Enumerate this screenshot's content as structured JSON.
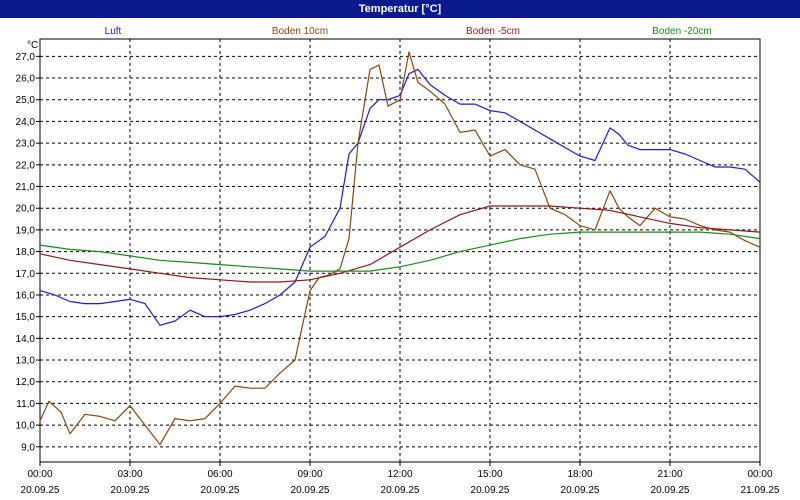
{
  "window": {
    "title": "Temperatur [°C]"
  },
  "chart_data": {
    "type": "line",
    "title": "Temperatur [°C]",
    "ylabel": "°C",
    "xlabel": "",
    "xlim": [
      0,
      24
    ],
    "ylim": [
      8.3,
      27.8
    ],
    "grid": true,
    "legend_position": "top",
    "yticks": [
      "9,0",
      "10,0",
      "11,0",
      "12,0",
      "13,0",
      "14,0",
      "15,0",
      "16,0",
      "17,0",
      "18,0",
      "19,0",
      "20,0",
      "21,0",
      "22,0",
      "23,0",
      "24,0",
      "25,0",
      "26,0",
      "27,0"
    ],
    "ytick_values": [
      9,
      10,
      11,
      12,
      13,
      14,
      15,
      16,
      17,
      18,
      19,
      20,
      21,
      22,
      23,
      24,
      25,
      26,
      27
    ],
    "xticks": [
      {
        "time": "00:00",
        "date": "20.09.25"
      },
      {
        "time": "03:00",
        "date": "20.09.25"
      },
      {
        "time": "06:00",
        "date": "20.09.25"
      },
      {
        "time": "09:00",
        "date": "20.09.25"
      },
      {
        "time": "12:00",
        "date": "20.09.25"
      },
      {
        "time": "15:00",
        "date": "20.09.25"
      },
      {
        "time": "18:00",
        "date": "20.09.25"
      },
      {
        "time": "21:00",
        "date": "20.09.25"
      },
      {
        "time": "00:00",
        "date": "21.09.25"
      }
    ],
    "xtick_hours": [
      0,
      3,
      6,
      9,
      12,
      15,
      18,
      21,
      24
    ],
    "series": [
      {
        "name": "Luft",
        "color": "#1c1cd2",
        "x": [
          0,
          0.5,
          1,
          1.5,
          2,
          2.5,
          3,
          3.5,
          4,
          4.5,
          5,
          5.5,
          6,
          6.5,
          7,
          7.5,
          8,
          8.5,
          9,
          9.5,
          10,
          10.3,
          10.6,
          11,
          11.3,
          11.6,
          12,
          12.3,
          12.6,
          13,
          13.5,
          14,
          14.5,
          15,
          15.5,
          16,
          16.5,
          17,
          17.5,
          18,
          18.5,
          19,
          19.3,
          19.6,
          20,
          20.5,
          21,
          21.5,
          22,
          22.5,
          23,
          23.5,
          24
        ],
        "values": [
          16.2,
          16.0,
          15.7,
          15.6,
          15.6,
          15.7,
          15.8,
          15.6,
          14.6,
          14.8,
          15.3,
          15.0,
          15.0,
          15.1,
          15.3,
          15.6,
          16.0,
          16.6,
          18.2,
          18.7,
          20.0,
          22.5,
          23.0,
          24.6,
          25.0,
          25.0,
          25.2,
          26.2,
          26.4,
          25.7,
          25.2,
          24.8,
          24.8,
          24.5,
          24.4,
          24.0,
          23.6,
          23.2,
          22.8,
          22.4,
          22.2,
          23.7,
          23.4,
          22.9,
          22.7,
          22.7,
          22.7,
          22.5,
          22.2,
          21.9,
          21.9,
          21.8,
          21.2
        ]
      },
      {
        "name": "Boden 10cm",
        "color": "#8b4513",
        "x": [
          0,
          0.3,
          0.7,
          1,
          1.5,
          2,
          2.5,
          3,
          3.5,
          4,
          4.5,
          5,
          5.5,
          6,
          6.5,
          7,
          7.5,
          8,
          8.5,
          9,
          9.3,
          9.6,
          10,
          10.3,
          10.6,
          11,
          11.3,
          11.6,
          12,
          12.3,
          12.6,
          13,
          13.5,
          14,
          14.5,
          15,
          15.5,
          16,
          16.5,
          17,
          17.5,
          18,
          18.5,
          19,
          19.3,
          19.6,
          20,
          20.5,
          21,
          21.5,
          22,
          22.5,
          23,
          23.5,
          24
        ],
        "values": [
          10.2,
          11.1,
          10.6,
          9.6,
          10.5,
          10.4,
          10.2,
          10.9,
          10.0,
          9.1,
          10.3,
          10.2,
          10.3,
          11.0,
          11.8,
          11.7,
          11.7,
          12.4,
          13.0,
          16.2,
          16.8,
          16.9,
          17.2,
          18.6,
          23.0,
          26.4,
          26.6,
          24.7,
          25.0,
          27.2,
          25.8,
          25.4,
          24.8,
          23.5,
          23.6,
          22.4,
          22.7,
          22.0,
          21.8,
          20.0,
          19.7,
          19.2,
          19.0,
          20.8,
          20.0,
          19.6,
          19.2,
          20.0,
          19.6,
          19.5,
          19.2,
          19.0,
          18.9,
          18.5,
          18.2
        ]
      },
      {
        "name": "Boden -5cm",
        "color": "#8b1a1a",
        "x": [
          0,
          1,
          2,
          3,
          4,
          5,
          6,
          7,
          8,
          9,
          10,
          11,
          12,
          13,
          14,
          15,
          16,
          17,
          18,
          19,
          20,
          21,
          22,
          23,
          24
        ],
        "values": [
          17.9,
          17.6,
          17.4,
          17.2,
          17.0,
          16.8,
          16.7,
          16.6,
          16.6,
          16.7,
          17.0,
          17.4,
          18.2,
          19.0,
          19.7,
          20.1,
          20.1,
          20.1,
          20.0,
          19.9,
          19.6,
          19.3,
          19.1,
          19.0,
          18.9
        ]
      },
      {
        "name": "Boden -20cm",
        "color": "#1a8c1a",
        "x": [
          0,
          1,
          2,
          3,
          4,
          5,
          6,
          7,
          8,
          9,
          10,
          11,
          12,
          13,
          14,
          15,
          16,
          17,
          18,
          19,
          20,
          21,
          22,
          23,
          24
        ],
        "values": [
          18.3,
          18.1,
          18.0,
          17.8,
          17.6,
          17.5,
          17.4,
          17.3,
          17.2,
          17.1,
          17.1,
          17.1,
          17.3,
          17.6,
          18.0,
          18.3,
          18.6,
          18.8,
          18.9,
          18.9,
          18.9,
          18.9,
          18.9,
          18.8,
          18.6
        ]
      }
    ]
  }
}
